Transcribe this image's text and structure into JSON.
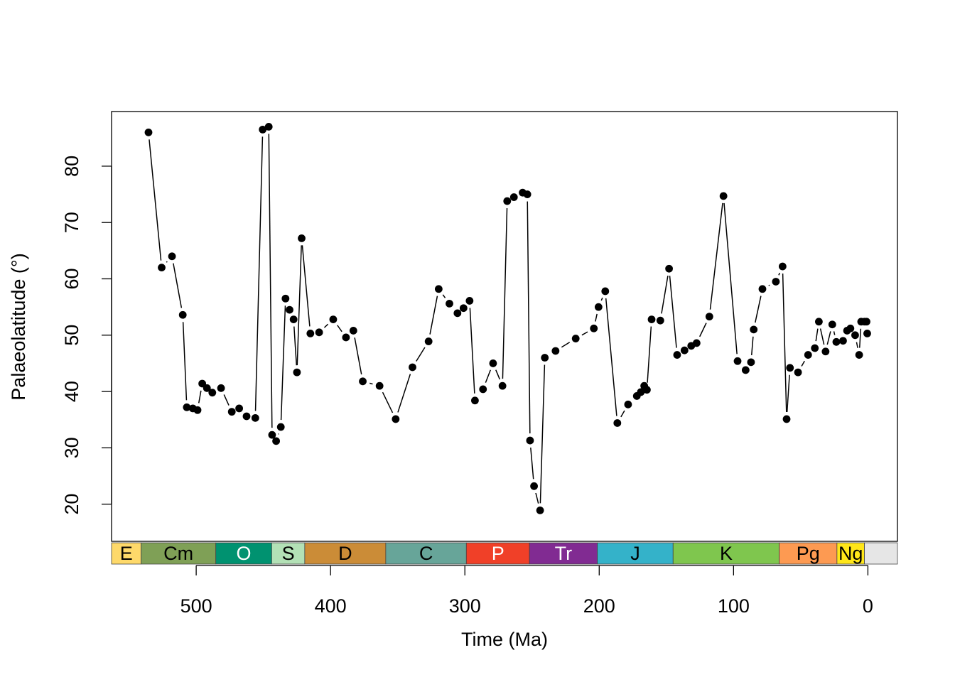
{
  "chart_data": {
    "type": "line",
    "xlabel": "Time (Ma)",
    "ylabel": "Palaeolatitude (°)",
    "xlim": [
      563,
      -22
    ],
    "ylim": [
      13.4,
      89.7
    ],
    "x_ticks": [
      500,
      400,
      300,
      200,
      100,
      0
    ],
    "y_ticks": [
      20,
      30,
      40,
      50,
      60,
      70,
      80
    ],
    "x_tick_labels": [
      "500",
      "400",
      "300",
      "200",
      "100",
      "0"
    ],
    "y_tick_labels": [
      "20",
      "30",
      "40",
      "50",
      "60",
      "70",
      "80"
    ],
    "grid": false,
    "legend": "none",
    "periods": [
      {
        "label": "E",
        "start": 563,
        "end": 541,
        "color": "#FED96A",
        "text_color": "#000000"
      },
      {
        "label": "Cm",
        "start": 541,
        "end": 485.4,
        "color": "#7FA056",
        "text_color": "#000000"
      },
      {
        "label": "O",
        "start": 485.4,
        "end": 443.8,
        "color": "#009270",
        "text_color": "#ffffff"
      },
      {
        "label": "S",
        "start": 443.8,
        "end": 419.2,
        "color": "#B3E1B6",
        "text_color": "#000000"
      },
      {
        "label": "D",
        "start": 419.2,
        "end": 358.9,
        "color": "#CB8C37",
        "text_color": "#000000"
      },
      {
        "label": "C",
        "start": 358.9,
        "end": 298.9,
        "color": "#67A599",
        "text_color": "#000000"
      },
      {
        "label": "P",
        "start": 298.9,
        "end": 251.9,
        "color": "#F04028",
        "text_color": "#ffffff"
      },
      {
        "label": "Tr",
        "start": 251.9,
        "end": 201.4,
        "color": "#812B92",
        "text_color": "#ffffff"
      },
      {
        "label": "J",
        "start": 201.4,
        "end": 145,
        "color": "#34B2C9",
        "text_color": "#000000"
      },
      {
        "label": "K",
        "start": 145,
        "end": 66,
        "color": "#7FC64E",
        "text_color": "#000000"
      },
      {
        "label": "Pg",
        "start": 66,
        "end": 23.03,
        "color": "#FD9A52",
        "text_color": "#000000"
      },
      {
        "label": "Ng",
        "start": 23.03,
        "end": 2.58,
        "color": "#FFE619",
        "text_color": "#000000"
      },
      {
        "label": "",
        "start": 2.58,
        "end": -22,
        "color": "#E6E6E6",
        "text_color": "#000000"
      }
    ],
    "series": [
      {
        "values": [
          [
            535.5,
            86.0
          ],
          [
            525.7,
            62.0
          ],
          [
            518.0,
            64.0
          ],
          [
            510.0,
            53.6
          ],
          [
            507.0,
            37.2
          ],
          [
            502.5,
            37.0
          ],
          [
            499.0,
            36.7
          ],
          [
            495.5,
            41.4
          ],
          [
            492.0,
            40.6
          ],
          [
            488.0,
            39.8
          ],
          [
            481.5,
            40.6
          ],
          [
            473.5,
            36.4
          ],
          [
            468.0,
            37.0
          ],
          [
            462.5,
            35.6
          ],
          [
            456.0,
            35.3
          ],
          [
            450.5,
            86.5
          ],
          [
            446.0,
            87.0
          ],
          [
            443.5,
            32.3
          ],
          [
            440.5,
            31.2
          ],
          [
            437.0,
            33.7
          ],
          [
            433.5,
            56.5
          ],
          [
            430.5,
            54.5
          ],
          [
            427.5,
            52.8
          ],
          [
            425.0,
            43.4
          ],
          [
            421.5,
            67.2
          ],
          [
            415.0,
            50.3
          ],
          [
            408.5,
            50.5
          ],
          [
            398.0,
            52.8
          ],
          [
            388.5,
            49.6
          ],
          [
            383.0,
            50.8
          ],
          [
            376.0,
            41.8
          ],
          [
            363.5,
            41.0
          ],
          [
            351.5,
            35.1
          ],
          [
            339.0,
            44.3
          ],
          [
            327.0,
            48.9
          ],
          [
            319.5,
            58.2
          ],
          [
            311.5,
            55.6
          ],
          [
            305.5,
            53.9
          ],
          [
            301.0,
            54.8
          ],
          [
            296.5,
            56.1
          ],
          [
            292.5,
            38.4
          ],
          [
            286.5,
            40.4
          ],
          [
            279.0,
            45.0
          ],
          [
            272.0,
            41.0
          ],
          [
            268.5,
            73.8
          ],
          [
            263.5,
            74.5
          ],
          [
            257.0,
            75.3
          ],
          [
            253.5,
            75.0
          ],
          [
            251.5,
            31.3
          ],
          [
            248.5,
            23.2
          ],
          [
            244.0,
            18.9
          ],
          [
            240.5,
            46.0
          ],
          [
            232.5,
            47.2
          ],
          [
            217.5,
            49.4
          ],
          [
            204.0,
            51.2
          ],
          [
            200.5,
            55.0
          ],
          [
            195.5,
            57.8
          ],
          [
            186.5,
            34.4
          ],
          [
            178.5,
            37.7
          ],
          [
            172.0,
            39.2
          ],
          [
            169.0,
            39.9
          ],
          [
            166.5,
            41.0
          ],
          [
            164.5,
            40.3
          ],
          [
            161.0,
            52.8
          ],
          [
            154.5,
            52.6
          ],
          [
            148.0,
            61.8
          ],
          [
            142.0,
            46.5
          ],
          [
            136.5,
            47.3
          ],
          [
            131.5,
            48.1
          ],
          [
            127.5,
            48.6
          ],
          [
            118.0,
            53.3
          ],
          [
            107.5,
            74.7
          ],
          [
            97.0,
            45.4
          ],
          [
            91.0,
            43.8
          ],
          [
            87.0,
            45.2
          ],
          [
            85.0,
            51.0
          ],
          [
            78.5,
            58.2
          ],
          [
            68.5,
            59.5
          ],
          [
            63.5,
            62.2
          ],
          [
            60.5,
            35.1
          ],
          [
            58.0,
            44.2
          ],
          [
            52.0,
            43.4
          ],
          [
            44.5,
            46.5
          ],
          [
            39.5,
            47.7
          ],
          [
            36.5,
            52.4
          ],
          [
            31.5,
            47.1
          ],
          [
            26.5,
            51.9
          ],
          [
            23.5,
            48.8
          ],
          [
            18.5,
            49.0
          ],
          [
            15.5,
            50.8
          ],
          [
            13.0,
            51.2
          ],
          [
            9.5,
            50.0
          ],
          [
            6.5,
            46.5
          ],
          [
            5.0,
            52.4
          ],
          [
            2.5,
            52.4
          ],
          [
            1.0,
            52.4
          ],
          [
            0.5,
            50.3
          ]
        ]
      }
    ]
  }
}
